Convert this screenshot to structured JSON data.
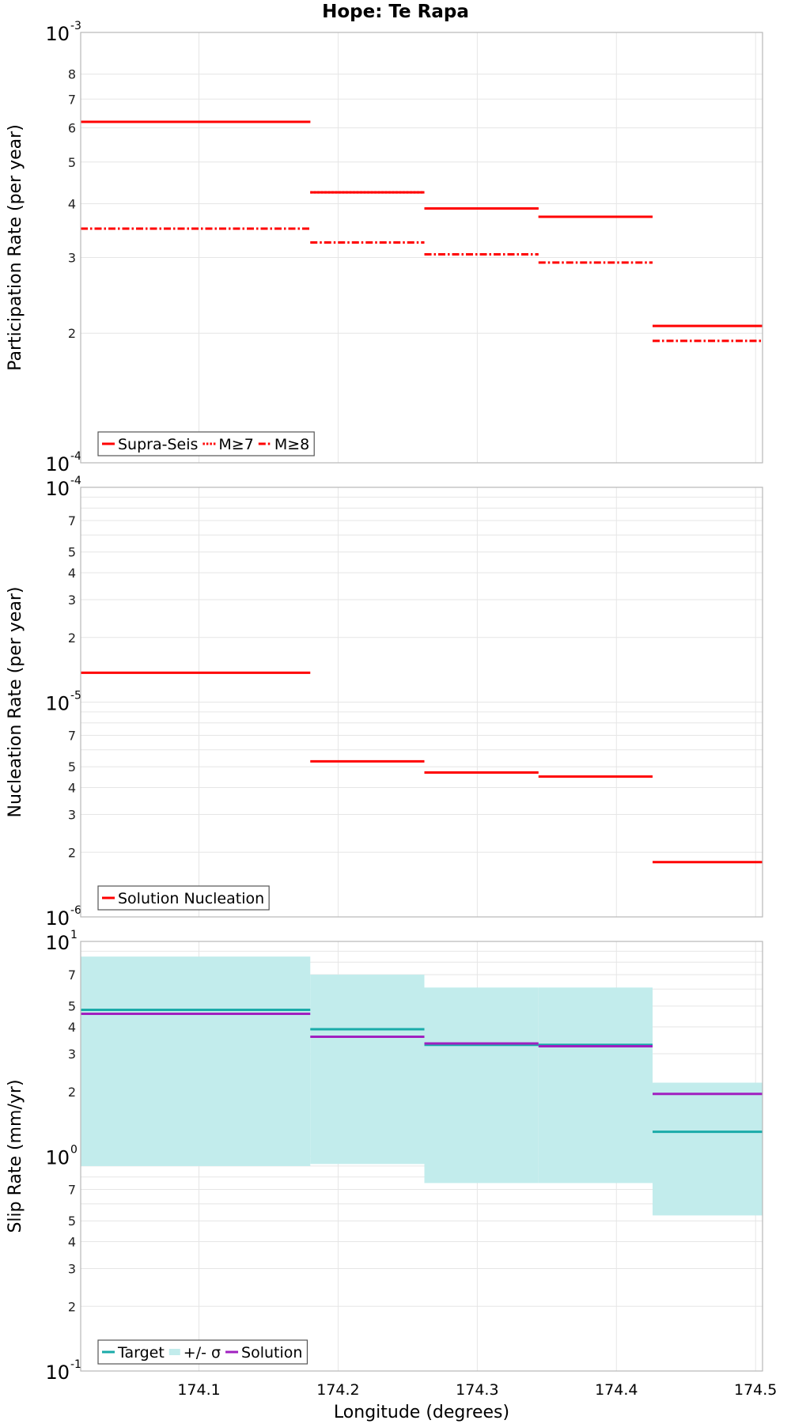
{
  "figure_title": "Hope: Te Rapa",
  "x_axis_label": "Longitude (degrees)",
  "chart_data": [
    {
      "type": "line",
      "ylabel": "Participation Rate (per year)",
      "yscale": "log",
      "ylim": [
        0.0001,
        0.001
      ],
      "xlim": [
        174.015,
        174.505
      ],
      "xticks": [
        174.1,
        174.2,
        174.3,
        174.4,
        174.5
      ],
      "x_edges": [
        174.015,
        174.18,
        174.262,
        174.344,
        174.426,
        174.505
      ],
      "major_ticks": [
        {
          "mant": "10",
          "exp": "-4",
          "value": 0.0001
        },
        {
          "mant": "10",
          "exp": "-3",
          "value": 0.001
        }
      ],
      "minor_ticks": [
        2,
        3,
        4,
        5,
        6,
        7,
        8
      ],
      "minor_decade": -4,
      "series": [
        {
          "name": "Supra-Seis",
          "color": "#ff0000",
          "dash": "solid",
          "values": [
            0.00062,
            0.000425,
            0.00039,
            0.000373,
            0.000208
          ]
        },
        {
          "name": "M≥7",
          "color": "#ff0000",
          "dash": "dot",
          "values": [
            0.00062,
            0.000425,
            0.00039,
            0.000373,
            0.000208
          ]
        },
        {
          "name": "M≥8",
          "color": "#ff0000",
          "dash": "dashdot",
          "values": [
            0.00035,
            0.000325,
            0.000305,
            0.000292,
            0.000192
          ]
        }
      ],
      "legend": {
        "position": "bottom-left",
        "entries": [
          "Supra-Seis",
          "M≥7",
          "M≥8"
        ]
      }
    },
    {
      "type": "line",
      "ylabel": "Nucleation Rate (per year)",
      "yscale": "log",
      "ylim": [
        1e-06,
        0.0001
      ],
      "xlim": [
        174.015,
        174.505
      ],
      "xticks": [
        174.1,
        174.2,
        174.3,
        174.4,
        174.5
      ],
      "x_edges": [
        174.015,
        174.18,
        174.262,
        174.344,
        174.426,
        174.505
      ],
      "major_ticks": [
        {
          "mant": "10",
          "exp": "-6",
          "value": 1e-06
        },
        {
          "mant": "10",
          "exp": "-5",
          "value": 1e-05
        },
        {
          "mant": "10",
          "exp": "-4",
          "value": 0.0001
        }
      ],
      "minor_ticks_labeled": [
        2,
        3,
        4,
        5,
        7
      ],
      "minor_ticks_grid": [
        2,
        3,
        4,
        5,
        6,
        7,
        8,
        9
      ],
      "minor_decades": [
        -6,
        -5
      ],
      "series": [
        {
          "name": "Solution Nucleation",
          "color": "#ff0000",
          "dash": "solid",
          "values": [
            1.37e-05,
            5.3e-06,
            4.7e-06,
            4.5e-06,
            1.8e-06
          ]
        }
      ],
      "legend": {
        "position": "bottom-left",
        "entries": [
          "Solution Nucleation"
        ]
      }
    },
    {
      "type": "line",
      "ylabel": "Slip Rate (mm/yr)",
      "yscale": "log",
      "ylim": [
        0.1,
        10
      ],
      "xlim": [
        174.015,
        174.505
      ],
      "xticks": [
        174.1,
        174.2,
        174.3,
        174.4,
        174.5
      ],
      "x_edges": [
        174.015,
        174.18,
        174.262,
        174.344,
        174.426,
        174.505
      ],
      "major_ticks": [
        {
          "mant": "10",
          "exp": "-1",
          "value": 0.1
        },
        {
          "mant": "10",
          "exp": "0",
          "value": 1
        },
        {
          "mant": "10",
          "exp": "1",
          "value": 10
        }
      ],
      "minor_ticks_labeled": [
        2,
        3,
        4,
        5,
        7
      ],
      "minor_ticks_grid": [
        2,
        3,
        4,
        5,
        6,
        7,
        8,
        9
      ],
      "minor_decades": [
        -1,
        0
      ],
      "band": {
        "name": "+/- σ",
        "color": "#c2ecec",
        "lower": [
          0.9,
          0.92,
          0.75,
          0.75,
          0.53
        ],
        "upper": [
          8.5,
          7.0,
          6.1,
          6.1,
          2.2
        ]
      },
      "series": [
        {
          "name": "Target",
          "color": "#1aaba9",
          "dash": "solid",
          "values": [
            4.8,
            3.9,
            3.3,
            3.3,
            1.3
          ]
        },
        {
          "name": "Solution",
          "color": "#a020c0",
          "dash": "solid",
          "values": [
            4.6,
            3.6,
            3.35,
            3.25,
            1.95
          ]
        }
      ],
      "legend": {
        "position": "bottom-left",
        "entries": [
          "Target",
          "+/- σ",
          "Solution"
        ]
      }
    }
  ]
}
